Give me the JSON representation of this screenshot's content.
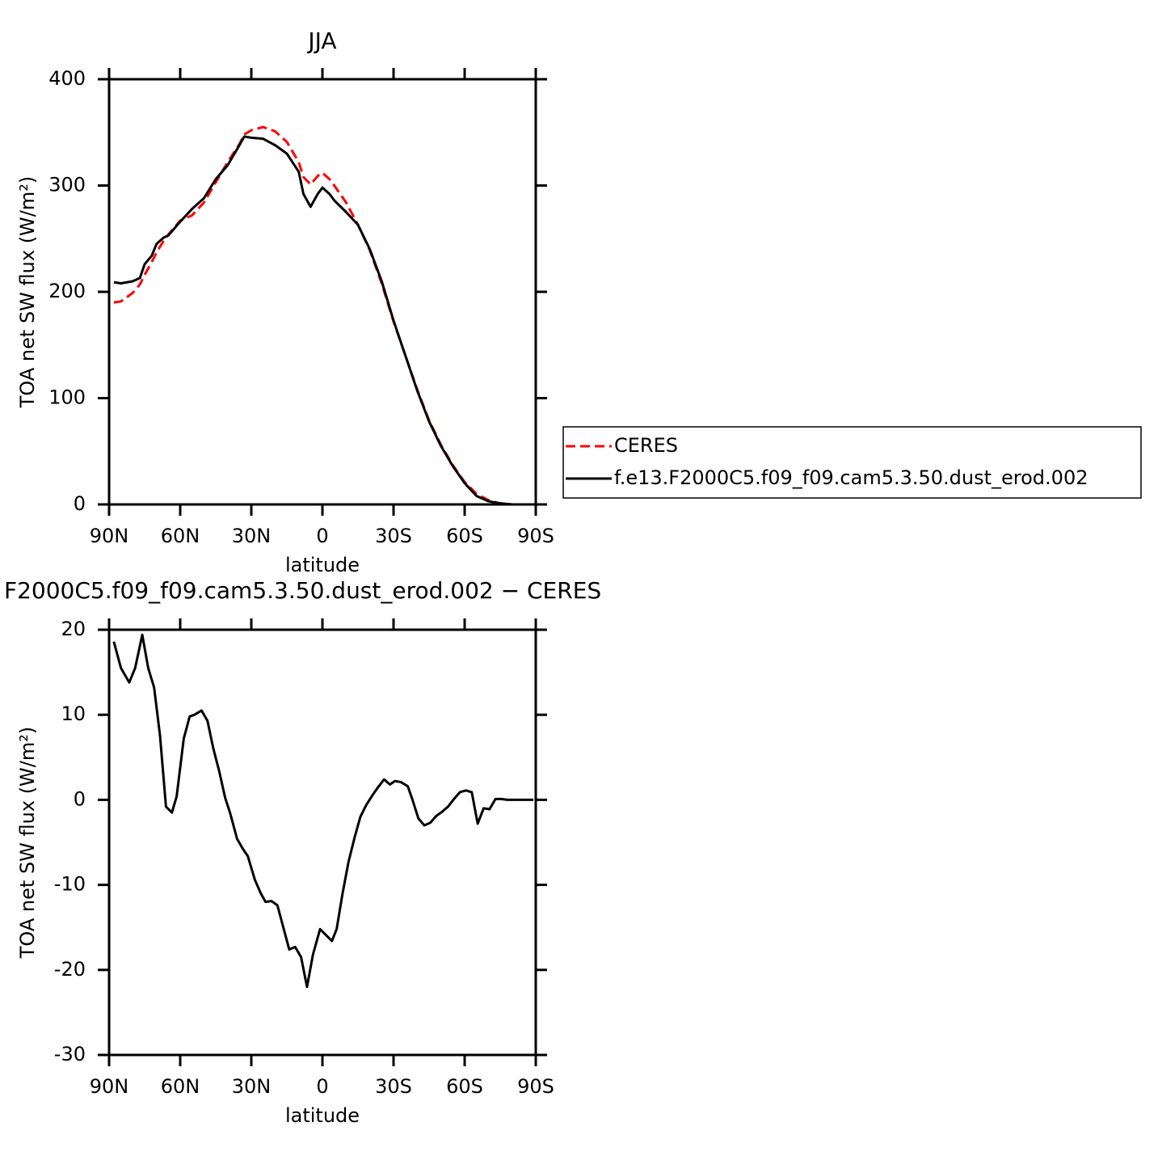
{
  "chart_data": [
    {
      "type": "line",
      "title": "JJA",
      "x_label": "latitude",
      "y_label": "TOA net SW flux (W/m²)",
      "x": [
        88,
        85,
        80,
        77,
        75,
        72,
        70,
        67,
        65,
        60,
        55,
        50,
        45,
        40,
        35,
        33,
        30,
        25,
        20,
        15,
        10,
        8,
        5,
        2,
        0,
        -3,
        -5,
        -10,
        -15,
        -20,
        -25,
        -30,
        -35,
        -40,
        -45,
        -50,
        -55,
        -60,
        -65,
        -70,
        -75,
        -80,
        -85,
        -89
      ],
      "series": [
        {
          "name": "CERES",
          "color": "#ff0000",
          "line_style": "dashed",
          "values": [
            190,
            191,
            199,
            207,
            216,
            228,
            237,
            248,
            254,
            267,
            272,
            284,
            303,
            322,
            339,
            348,
            352,
            355,
            351,
            341,
            322,
            308,
            301,
            309,
            312,
            306,
            300,
            284,
            263,
            239,
            208,
            172,
            140,
            108,
            79,
            56,
            37,
            21,
            10,
            4,
            1,
            0,
            0,
            0
          ]
        },
        {
          "name": "f.e13.F2000C5.f09_f09.cam5.3.50.dust_erod.002",
          "color": "#000000",
          "line_style": "solid",
          "values": [
            209,
            208,
            210,
            213,
            226,
            234,
            245,
            251,
            253,
            266,
            278,
            288,
            306,
            319,
            338,
            346,
            345,
            344,
            338,
            330,
            313,
            292,
            280,
            292,
            298,
            292,
            286,
            275,
            263,
            240,
            210,
            173,
            140,
            107,
            78,
            55,
            36,
            20,
            8,
            3,
            1,
            0,
            0,
            0
          ]
        }
      ],
      "xlim": [
        90,
        -90
      ],
      "xticks": [
        {
          "value": 90,
          "label": "90N"
        },
        {
          "value": 60,
          "label": "60N"
        },
        {
          "value": 30,
          "label": "30N"
        },
        0,
        {
          "value": -30,
          "label": "30S"
        },
        {
          "value": -60,
          "label": "60S"
        },
        {
          "value": -90,
          "label": "90S"
        }
      ],
      "ylim": [
        0,
        400
      ],
      "yticks": [
        0,
        100,
        200,
        300,
        400
      ],
      "legend": "right"
    },
    {
      "type": "line",
      "title": "F2000C5.f09_f09.cam5.3.50.dust_erod.002 − CERES",
      "x_label": "latitude",
      "y_label": "TOA net SW flux (W/m²)",
      "x": [
        88,
        85,
        81.5,
        79,
        76,
        73.5,
        71,
        68.5,
        66,
        63.5,
        61.5,
        58.5,
        56,
        54,
        51,
        48.5,
        46,
        43.5,
        41,
        39,
        36,
        33.5,
        31.5,
        28.5,
        26,
        24,
        21.5,
        19,
        16.5,
        14,
        11.5,
        9,
        6.5,
        4,
        1,
        -4,
        -6,
        -8.5,
        -11,
        -13.5,
        -16,
        -18.5,
        -21,
        -23,
        -26,
        -28.5,
        -30.5,
        -33,
        -36,
        -38,
        -40.5,
        -43,
        -45.5,
        -48,
        -50.5,
        -53,
        -55.5,
        -58,
        -60.5,
        -63,
        -65.5,
        -68,
        -70.5,
        -73,
        -75.5,
        -78,
        -82,
        -86,
        -89
      ],
      "series": [
        {
          "color": "#000000",
          "line_style": "solid",
          "values": [
            18.6,
            15.5,
            13.8,
            15.5,
            19.4,
            15.5,
            13.2,
            7.5,
            -0.8,
            -1.5,
            0.4,
            7.2,
            9.8,
            10,
            10.5,
            9.3,
            6,
            3.3,
            0.2,
            -1.5,
            -4.6,
            -5.8,
            -6.6,
            -9.4,
            -11,
            -12,
            -11.9,
            -12.4,
            -15,
            -17.6,
            -17.3,
            -18.5,
            -22,
            -18.2,
            -15.2,
            -16.6,
            -15.2,
            -11,
            -7.3,
            -4.5,
            -2,
            -0.6,
            0.5,
            1.3,
            2.4,
            1.8,
            2.2,
            2.1,
            1.6,
            0,
            -2.2,
            -3,
            -2.7,
            -1.9,
            -1.4,
            -0.8,
            0.1,
            0.9,
            1.1,
            0.9,
            -2.8,
            -1,
            -1.1,
            0.1,
            0.1,
            0,
            0,
            0,
            0
          ]
        }
      ],
      "xlim": [
        90,
        -90
      ],
      "xticks": [
        {
          "value": 90,
          "label": "90N"
        },
        {
          "value": 60,
          "label": "60N"
        },
        {
          "value": 30,
          "label": "30N"
        },
        0,
        {
          "value": -30,
          "label": "30S"
        },
        {
          "value": -60,
          "label": "60S"
        },
        {
          "value": -90,
          "label": "90S"
        }
      ],
      "ylim": [
        -30,
        20
      ],
      "yticks": [
        -30,
        -20,
        -10,
        0,
        10,
        20
      ]
    }
  ]
}
